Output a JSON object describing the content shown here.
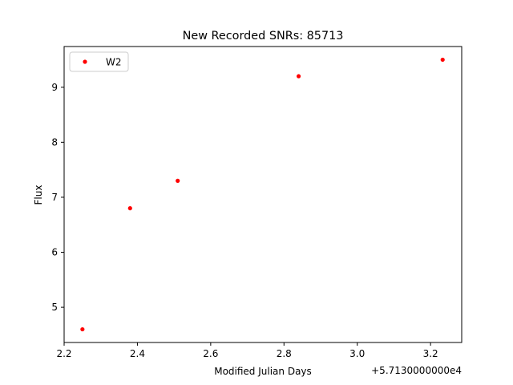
{
  "chart_data": {
    "type": "scatter",
    "title": "New Recorded SNRs: 85713",
    "xlabel": "Modified Julian Days",
    "ylabel": "Flux",
    "x_offset_label": "+5.7130000000e4",
    "xlim": [
      2.2,
      3.285
    ],
    "ylim": [
      4.36,
      9.74
    ],
    "x_ticks": [
      2.2,
      2.4,
      2.6,
      2.8,
      3.0,
      3.2
    ],
    "x_tick_labels": [
      "2.2",
      "2.4",
      "2.6",
      "2.8",
      "3.0",
      "3.2"
    ],
    "y_ticks": [
      5,
      6,
      7,
      8,
      9
    ],
    "y_tick_labels": [
      "5",
      "6",
      "7",
      "8",
      "9"
    ],
    "grid": false,
    "legend_position": "top-left",
    "series": [
      {
        "name": "W2",
        "color": "#ff0000",
        "marker": "circle",
        "x": [
          2.25,
          2.38,
          2.51,
          2.84,
          3.233
        ],
        "y": [
          4.6,
          6.8,
          7.3,
          9.2,
          9.5
        ]
      }
    ]
  }
}
